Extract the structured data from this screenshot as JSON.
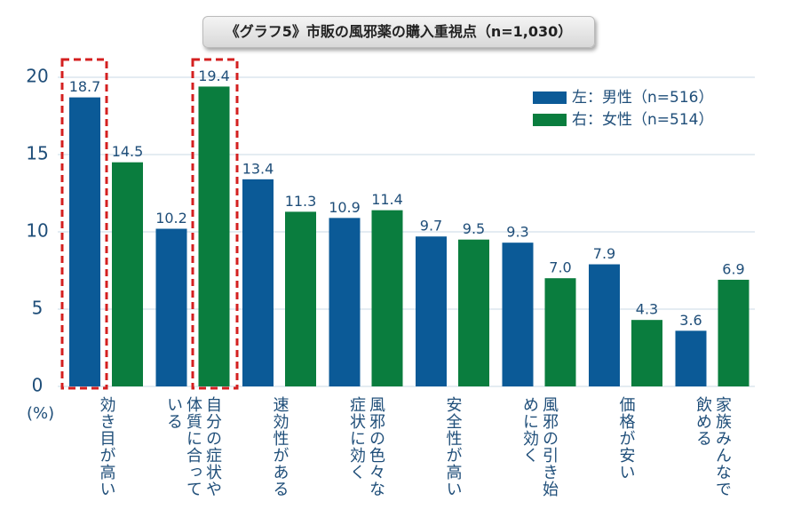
{
  "chart_data": {
    "type": "bar",
    "title": "《グラフ5》市販の風邪薬の購入重視点（n=1,030）",
    "y_unit": "(%)",
    "categories": [
      "効き目が高い",
      "自分の症状や体質に合っている",
      "速効性がある",
      "風邪の色々な症状に効く",
      "安全性が高い",
      "風邪の引き始めに効く",
      "価格が安い",
      "家族みんなで飲める"
    ],
    "series": [
      {
        "name": "左：男性（n=516）",
        "color": "#0b5a97",
        "values": [
          18.7,
          10.2,
          13.4,
          10.9,
          9.7,
          9.3,
          7.9,
          3.6
        ]
      },
      {
        "name": "右：女性（n=514）",
        "color": "#0a7d3e",
        "values": [
          14.5,
          19.4,
          11.3,
          11.4,
          9.5,
          7.0,
          4.3,
          6.9
        ],
        "value_labels": [
          "14.5",
          "19.4",
          "11.3",
          "11.4",
          "9.5",
          "7.0",
          "4.3",
          "6.9"
        ]
      }
    ],
    "ylim": [
      0,
      20
    ],
    "yticks": [
      0,
      5,
      10,
      15,
      20
    ],
    "grid": true
  }
}
